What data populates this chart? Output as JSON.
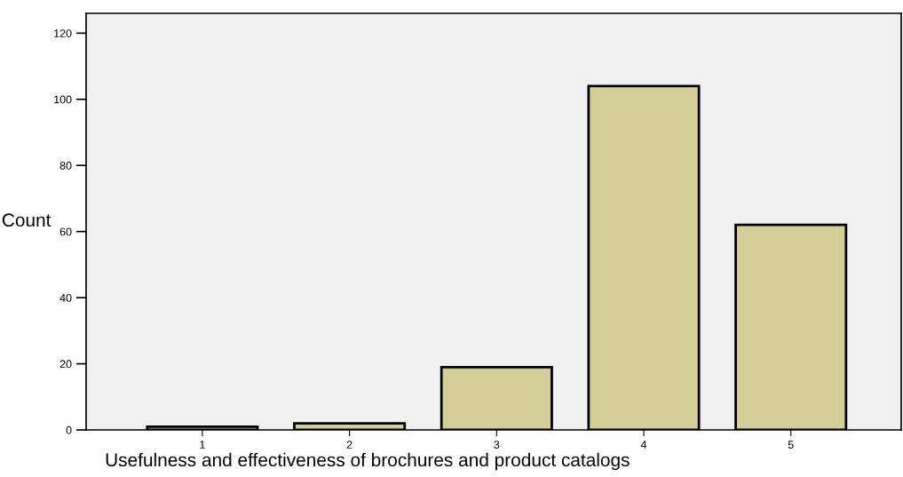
{
  "chart_data": {
    "type": "bar",
    "xlabel": "Usefulness and effectiveness of brochures and product catalogs",
    "ylabel": "Count",
    "categories": [
      "1",
      "2",
      "3",
      "4",
      "5"
    ],
    "values": [
      1,
      2,
      19,
      104,
      62
    ],
    "color": "#d3ce97",
    "ylim": [
      0,
      126
    ],
    "yticks": [
      0,
      20,
      40,
      60,
      80,
      100,
      120
    ],
    "grid": false,
    "legend": false
  }
}
